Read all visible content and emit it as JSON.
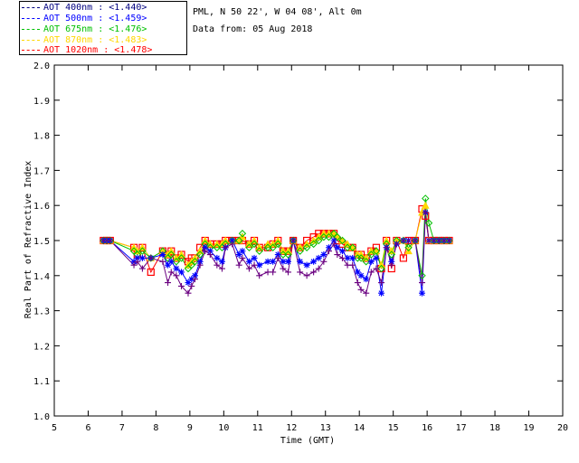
{
  "header": {
    "site": "PML, N 50 22', W 04 08', Alt 0m",
    "date": "Data from: 05 Aug 2018"
  },
  "legend": [
    {
      "label": "AOT  400nm : <1.440>",
      "color": "#000080"
    },
    {
      "label": "AOT  500nm : <1.459>",
      "color": "#0000ff"
    },
    {
      "label": "AOT  675nm : <1.476>",
      "color": "#00c000"
    },
    {
      "label": "AOT  870nm : <1.483>",
      "color": "#ffd700"
    },
    {
      "label": "AOT 1020nm : <1.478>",
      "color": "#ff0000"
    }
  ],
  "chart_data": {
    "type": "scatter",
    "title": "",
    "xlabel": "Time (GMT)",
    "ylabel": "Real Part of Refractive Index",
    "xlim": [
      5,
      20
    ],
    "ylim": [
      1.0,
      2.0
    ],
    "xticks": [
      "5",
      "6",
      "7",
      "8",
      "9",
      "10",
      "11",
      "12",
      "13",
      "14",
      "15",
      "16",
      "17",
      "18",
      "19",
      "20"
    ],
    "yticks": [
      "1.0",
      "1.1",
      "1.2",
      "1.3",
      "1.4",
      "1.5",
      "1.6",
      "1.7",
      "1.8",
      "1.9",
      "2.0"
    ],
    "x": [
      6.45,
      6.55,
      6.65,
      7.35,
      7.45,
      7.6,
      7.85,
      8.2,
      8.35,
      8.45,
      8.6,
      8.75,
      8.95,
      9.05,
      9.15,
      9.3,
      9.45,
      9.6,
      9.8,
      9.95,
      10.05,
      10.25,
      10.45,
      10.55,
      10.75,
      10.9,
      11.05,
      11.3,
      11.45,
      11.6,
      11.75,
      11.9,
      12.05,
      12.25,
      12.45,
      12.65,
      12.8,
      12.95,
      13.1,
      13.25,
      13.35,
      13.5,
      13.65,
      13.8,
      13.95,
      14.05,
      14.2,
      14.35,
      14.5,
      14.65,
      14.8,
      14.95,
      15.1,
      15.3,
      15.45,
      15.65,
      15.85,
      15.95,
      16.05,
      16.2,
      16.35,
      16.5,
      16.65
    ],
    "series": [
      {
        "name": "AOT 400nm",
        "color": "#6a0080",
        "marker": "plus",
        "values": [
          1.5,
          1.5,
          1.5,
          1.43,
          1.44,
          1.42,
          1.45,
          1.44,
          1.38,
          1.41,
          1.4,
          1.37,
          1.35,
          1.37,
          1.39,
          1.43,
          1.47,
          1.46,
          1.43,
          1.42,
          1.48,
          1.49,
          1.43,
          1.45,
          1.42,
          1.43,
          1.4,
          1.41,
          1.41,
          1.45,
          1.42,
          1.41,
          1.5,
          1.41,
          1.4,
          1.41,
          1.42,
          1.44,
          1.47,
          1.49,
          1.46,
          1.45,
          1.43,
          1.43,
          1.38,
          1.36,
          1.35,
          1.41,
          1.42,
          1.38,
          1.48,
          1.43,
          1.49,
          1.5,
          1.5,
          1.5,
          1.38,
          1.58,
          1.5,
          1.5,
          1.5,
          1.5,
          1.5
        ]
      },
      {
        "name": "AOT 500nm",
        "color": "#0000ff",
        "marker": "star",
        "values": [
          1.5,
          1.5,
          1.5,
          1.44,
          1.45,
          1.45,
          1.45,
          1.46,
          1.43,
          1.44,
          1.42,
          1.41,
          1.38,
          1.39,
          1.4,
          1.44,
          1.48,
          1.47,
          1.45,
          1.44,
          1.48,
          1.5,
          1.46,
          1.47,
          1.44,
          1.45,
          1.43,
          1.44,
          1.44,
          1.46,
          1.44,
          1.44,
          1.5,
          1.44,
          1.43,
          1.44,
          1.45,
          1.46,
          1.48,
          1.5,
          1.48,
          1.47,
          1.45,
          1.45,
          1.41,
          1.4,
          1.39,
          1.44,
          1.45,
          1.35,
          1.48,
          1.44,
          1.49,
          1.5,
          1.5,
          1.5,
          1.35,
          1.58,
          1.5,
          1.5,
          1.5,
          1.5,
          1.5
        ]
      },
      {
        "name": "AOT 675nm",
        "color": "#00c000",
        "marker": "diamond",
        "values": [
          1.5,
          1.5,
          1.5,
          1.47,
          1.46,
          1.47,
          1.45,
          1.47,
          1.45,
          1.46,
          1.44,
          1.45,
          1.42,
          1.43,
          1.44,
          1.46,
          1.49,
          1.48,
          1.48,
          1.48,
          1.49,
          1.5,
          1.5,
          1.52,
          1.48,
          1.49,
          1.47,
          1.48,
          1.48,
          1.49,
          1.46,
          1.46,
          1.5,
          1.47,
          1.48,
          1.49,
          1.5,
          1.51,
          1.51,
          1.52,
          1.51,
          1.5,
          1.48,
          1.48,
          1.45,
          1.45,
          1.44,
          1.46,
          1.47,
          1.42,
          1.49,
          1.46,
          1.5,
          1.5,
          1.48,
          1.5,
          1.4,
          1.62,
          1.55,
          1.5,
          1.5,
          1.5,
          1.5
        ]
      },
      {
        "name": "AOT 870nm",
        "color": "#ffd700",
        "marker": "triangle",
        "values": [
          1.5,
          1.5,
          1.5,
          1.48,
          1.47,
          1.48,
          1.45,
          1.47,
          1.46,
          1.47,
          1.45,
          1.46,
          1.43,
          1.44,
          1.45,
          1.47,
          1.5,
          1.49,
          1.49,
          1.49,
          1.5,
          1.5,
          1.5,
          1.51,
          1.49,
          1.5,
          1.48,
          1.49,
          1.49,
          1.5,
          1.47,
          1.47,
          1.5,
          1.48,
          1.49,
          1.5,
          1.51,
          1.52,
          1.52,
          1.52,
          1.51,
          1.5,
          1.49,
          1.48,
          1.46,
          1.46,
          1.45,
          1.47,
          1.47,
          1.43,
          1.5,
          1.47,
          1.5,
          1.5,
          1.47,
          1.5,
          1.58,
          1.6,
          1.5,
          1.5,
          1.5,
          1.5,
          1.5
        ]
      },
      {
        "name": "AOT 1020nm",
        "color": "#ff0000",
        "marker": "square",
        "values": [
          1.5,
          1.5,
          1.5,
          1.48,
          1.46,
          1.48,
          1.41,
          1.47,
          1.46,
          1.47,
          1.45,
          1.46,
          1.44,
          1.45,
          1.45,
          1.48,
          1.5,
          1.49,
          1.49,
          1.49,
          1.5,
          1.5,
          1.5,
          1.5,
          1.49,
          1.5,
          1.48,
          1.48,
          1.49,
          1.5,
          1.47,
          1.47,
          1.5,
          1.48,
          1.5,
          1.51,
          1.52,
          1.52,
          1.52,
          1.52,
          1.5,
          1.49,
          1.48,
          1.48,
          1.46,
          1.46,
          1.45,
          1.47,
          1.48,
          1.42,
          1.5,
          1.42,
          1.5,
          1.45,
          1.5,
          1.5,
          1.59,
          1.57,
          1.5,
          1.5,
          1.5,
          1.5,
          1.5
        ]
      }
    ]
  }
}
